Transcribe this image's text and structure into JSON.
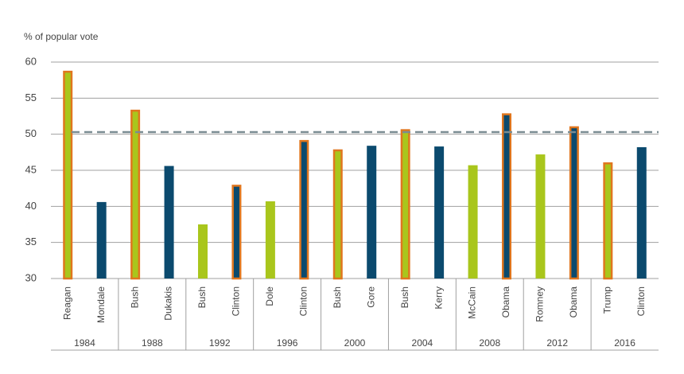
{
  "chart_data": {
    "type": "bar",
    "y_label": "% of popular vote",
    "categories": [
      "Reagan",
      "Mondale",
      "Bush",
      "Dukakis",
      "Bush",
      "Clinton",
      "Dole",
      "Clinton",
      "Bush",
      "Gore",
      "Bush",
      "Kerry",
      "McCain",
      "Obama",
      "Romney",
      "Obama",
      "Trump",
      "Clinton"
    ],
    "groups": [
      "1984",
      "1988",
      "1992",
      "1996",
      "2000",
      "2004",
      "2008",
      "2012",
      "2016"
    ],
    "values": [
      58.8,
      40.6,
      53.4,
      45.6,
      37.5,
      43.0,
      40.7,
      49.2,
      47.9,
      48.4,
      50.7,
      48.3,
      45.7,
      52.9,
      47.2,
      51.1,
      46.1,
      48.2
    ],
    "bar_colors": [
      "#a9c61c",
      "#0b4a6e",
      "#a9c61c",
      "#0b4a6e",
      "#a9c61c",
      "#0b4a6e",
      "#a9c61c",
      "#0b4a6e",
      "#a9c61c",
      "#0b4a6e",
      "#a9c61c",
      "#0b4a6e",
      "#a9c61c",
      "#0b4a6e",
      "#a9c61c",
      "#0b4a6e",
      "#a9c61c",
      "#0b4a6e"
    ],
    "winner": [
      true,
      false,
      true,
      false,
      false,
      true,
      false,
      true,
      true,
      false,
      true,
      false,
      false,
      true,
      false,
      true,
      true,
      false
    ],
    "winner_outline_color": "#e0761e",
    "reference_line": 50.3,
    "reference_line_color": "#7a8c92",
    "ylim": [
      30,
      60
    ],
    "yticks": [
      30,
      35,
      40,
      45,
      50,
      55,
      60
    ],
    "grid": true
  }
}
